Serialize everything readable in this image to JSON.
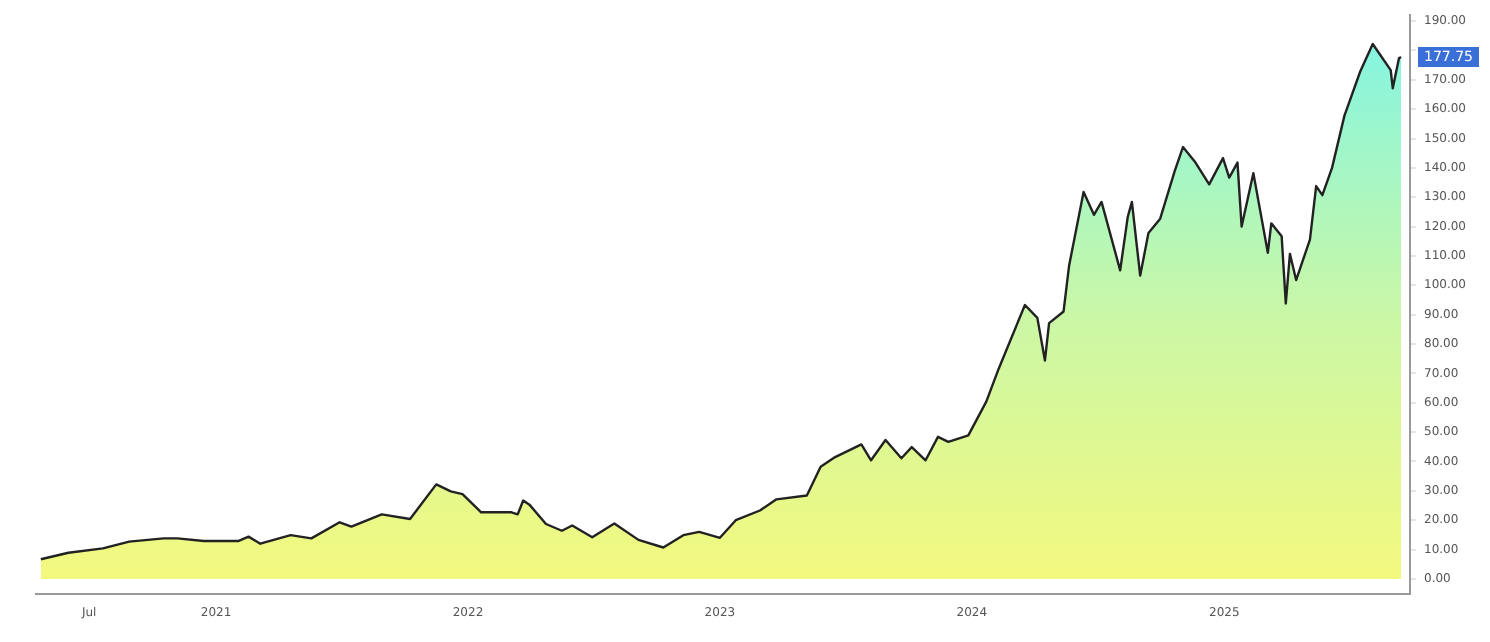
{
  "chart_data": {
    "type": "area",
    "x": [
      "2020-04-22",
      "2020-06-01",
      "2020-07-21",
      "2020-08-28",
      "2020-10-17",
      "2020-11-06",
      "2020-12-14",
      "2021-02-02",
      "2021-02-17",
      "2021-03-06",
      "2021-04-19",
      "2021-05-19",
      "2021-06-29",
      "2021-07-16",
      "2021-08-29",
      "2021-10-09",
      "2021-11-16",
      "2021-12-07",
      "2021-12-24",
      "2022-01-20",
      "2022-03-05",
      "2022-03-14",
      "2022-03-22",
      "2022-03-31",
      "2022-04-24",
      "2022-05-17",
      "2022-06-01",
      "2022-06-30",
      "2022-08-01",
      "2022-09-05",
      "2022-10-11",
      "2022-11-09",
      "2022-12-02",
      "2023-01-01",
      "2023-01-24",
      "2023-02-28",
      "2023-03-24",
      "2023-05-07",
      "2023-05-27",
      "2023-06-17",
      "2023-07-25",
      "2023-08-08",
      "2023-08-29",
      "2023-09-21",
      "2023-10-06",
      "2023-10-26",
      "2023-11-13",
      "2023-11-28",
      "2023-12-27",
      "2024-01-22",
      "2024-02-09",
      "2024-03-18",
      "2024-04-05",
      "2024-04-16",
      "2024-04-22",
      "2024-05-13",
      "2024-05-21",
      "2024-06-11",
      "2024-06-26",
      "2024-07-07",
      "2024-08-03",
      "2024-08-14",
      "2024-08-20",
      "2024-09-01",
      "2024-09-13",
      "2024-09-30",
      "2024-10-21",
      "2024-11-02",
      "2024-11-19",
      "2024-12-10",
      "2024-12-30",
      "2025-01-08",
      "2025-01-20",
      "2025-01-26",
      "2025-02-12",
      "2025-03-05",
      "2025-03-10",
      "2025-03-25",
      "2025-03-31",
      "2025-04-06",
      "2025-04-15",
      "2025-05-05",
      "2025-05-14",
      "2025-05-23",
      "2025-06-06",
      "2025-06-24",
      "2025-07-17",
      "2025-08-04",
      "2025-08-30",
      "2025-09-02",
      "2025-09-11",
      "2025-09-14"
    ],
    "series": [
      {
        "color": "#222222",
        "values": [
          6.7,
          8.9,
          10.4,
          12.7,
          13.8,
          13.8,
          12.9,
          12.9,
          14.4,
          12,
          14.9,
          13.8,
          19.3,
          17.8,
          22,
          20.4,
          32.2,
          29.8,
          28.9,
          22.7,
          22.7,
          22,
          26.7,
          25.3,
          18.7,
          16.4,
          18.2,
          14.2,
          18.9,
          13.3,
          10.7,
          14.9,
          16,
          14,
          20,
          23.3,
          27.1,
          28.4,
          38.2,
          41.5,
          45.8,
          40.4,
          47.3,
          41.1,
          44.9,
          40.4,
          48.4,
          46.7,
          48.9,
          60.4,
          71.6,
          93.3,
          88.9,
          74.4,
          87.1,
          91.1,
          106.7,
          131.8,
          124,
          128.4,
          105.1,
          123.3,
          128.4,
          103.3,
          117.8,
          122.7,
          138.9,
          147.1,
          142.2,
          134.4,
          143.3,
          136.7,
          141.8,
          120,
          138.2,
          111.1,
          121.1,
          116.7,
          93.8,
          110.7,
          101.8,
          115.6,
          133.8,
          130.7,
          140,
          157.8,
          172.9,
          182.2,
          173.3,
          167.1,
          177.3,
          177.75
        ]
      }
    ],
    "xlim": [
      "2020-04-15",
      "2025-09-27"
    ],
    "xticks": [
      {
        "value": "2020-07-01",
        "label": "Jul"
      },
      {
        "value": "2021-01-01",
        "label": "2021"
      },
      {
        "value": "2022-01-01",
        "label": "2022"
      },
      {
        "value": "2023-01-01",
        "label": "2023"
      },
      {
        "value": "2024-01-01",
        "label": "2024"
      },
      {
        "value": "2025-01-01",
        "label": "2025"
      }
    ],
    "ylim": [
      -5,
      192
    ],
    "yticks": [
      {
        "value": 0,
        "label": "0.00"
      },
      {
        "value": 10,
        "label": "10.00"
      },
      {
        "value": 20,
        "label": "20.00"
      },
      {
        "value": 30,
        "label": "30.00"
      },
      {
        "value": 40,
        "label": "40.00"
      },
      {
        "value": 50,
        "label": "50.00"
      },
      {
        "value": 60,
        "label": "60.00"
      },
      {
        "value": 70,
        "label": "70.00"
      },
      {
        "value": 80,
        "label": "80.00"
      },
      {
        "value": 90,
        "label": "90.00"
      },
      {
        "value": 100,
        "label": "100.00"
      },
      {
        "value": 110,
        "label": "110.00"
      },
      {
        "value": 120,
        "label": "120.00"
      },
      {
        "value": 130,
        "label": "130.00"
      },
      {
        "value": 140,
        "label": "140.00"
      },
      {
        "value": 150,
        "label": "150.00"
      },
      {
        "value": 160,
        "label": "160.00"
      },
      {
        "value": 170,
        "label": "170.00"
      },
      {
        "value": 180,
        "label": null
      },
      {
        "value": 190,
        "label": "190.00"
      }
    ],
    "annotations": [
      "177.75"
    ],
    "grid": false,
    "legend": false,
    "marker": "none",
    "line_style": "solid"
  }
}
